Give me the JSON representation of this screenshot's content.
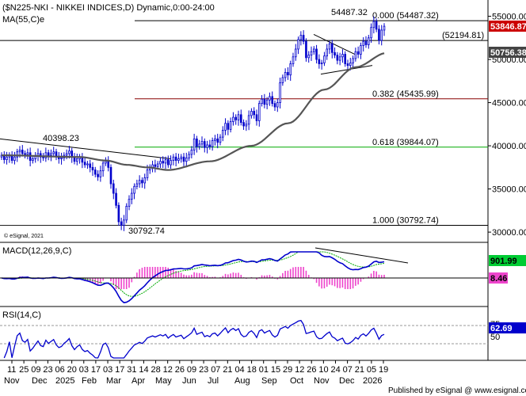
{
  "panel_title": "($N225-NKI - NIKKEI INDICES,D) Dynamic,0:00-24:00",
  "ma_label": "MA(55,C)e",
  "watermark": "© eSignal, 2021",
  "footer": "Published by eSignal @ www.esignal.com",
  "colors": {
    "candle": "#0000cc",
    "ma": "#555555",
    "fib_high": "#000000",
    "fib_mid": "#880000",
    "fib_green": "#00aa00",
    "macd_hist": "#ee44cc",
    "macd_signal": "#00aa00",
    "price_badge": "#cc0000"
  },
  "price_panel": {
    "ylim": [
      29000,
      56700
    ],
    "ticks": [
      "55000.00",
      "50000.00",
      "45000.00",
      "40000.00",
      "35000.00",
      "30000.00"
    ],
    "tick_values": [
      55000,
      50000,
      45000,
      40000,
      35000,
      30000
    ],
    "last_price": "53846.87",
    "ma_value": "50756.38",
    "peak_label": "54487.32",
    "trough_label": "30792.74",
    "early_high_label": "40398.23",
    "fib_levels": [
      {
        "ratio": "0.000",
        "value": 54487.32,
        "label": "0.000 (54487.32)",
        "color": "#000000"
      },
      {
        "ratio": "",
        "value": 52194.81,
        "label": "(52194.81)",
        "color": "#000000"
      },
      {
        "ratio": "0.382",
        "value": 45435.99,
        "label": "0.382 (45435.99)",
        "color": "#880000"
      },
      {
        "ratio": "0.618",
        "value": 39844.07,
        "label": "0.618 (39844.07)",
        "color": "#00aa00"
      },
      {
        "ratio": "1.000",
        "value": 30792.74,
        "label": "1.000 (30792.74)",
        "color": "#000000"
      }
    ]
  },
  "macd_panel": {
    "label": "MACD(12,26,9,C)",
    "value_1": "901.99",
    "value_2": "8.46"
  },
  "rsi_panel": {
    "label": "RSI(14,C)",
    "ticks": [
      "75",
      "50"
    ],
    "value": "62.69"
  },
  "x_axis": {
    "day_labels": [
      "11",
      "25",
      "09",
      "23",
      "06",
      "20",
      "03",
      "17",
      "03",
      "17",
      "31",
      "14",
      "28",
      "12",
      "26",
      "09",
      "23",
      "07",
      "21",
      "04",
      "18",
      "01",
      "15",
      "29",
      "12",
      "26",
      "10",
      "24",
      "07",
      "21",
      "05",
      "19"
    ],
    "month_labels": [
      "Nov",
      "Dec",
      "2025",
      "Feb",
      "Mar",
      "Apr",
      "May",
      "Jun",
      "Jul",
      "Aug",
      "Sep",
      "Oct",
      "Nov",
      "Dec",
      "2026"
    ]
  },
  "chart_data": {
    "type": "candlestick",
    "title": "($N225-NKI - NIKKEI INDICES,D) Dynamic,0:00-24:00",
    "ylim": [
      29000,
      56700
    ],
    "close_series_approx": [
      38900,
      38400,
      38700,
      38900,
      38300,
      38700,
      39300,
      39500,
      39100,
      39000,
      39200,
      38300,
      38500,
      38800,
      39100,
      38700,
      38600,
      39200,
      38900,
      39100,
      39300,
      38800,
      38500,
      38600,
      38900,
      39100,
      39400,
      38700,
      38200,
      38500,
      38700,
      38100,
      37800,
      37900,
      37500,
      37200,
      36700,
      36400,
      37100,
      38000,
      38200,
      37500,
      35600,
      34500,
      33100,
      31200,
      30800,
      31400,
      33000,
      33800,
      34500,
      35300,
      35600,
      36000,
      35700,
      36300,
      37200,
      37500,
      37800,
      37600,
      37900,
      38200,
      38000,
      38400,
      37800,
      38300,
      38700,
      38300,
      38500,
      38700,
      38200,
      38600,
      39000,
      39500,
      40800,
      39900,
      40200,
      40500,
      39800,
      40100,
      39900,
      40600,
      40800,
      40400,
      41000,
      41800,
      42600,
      41900,
      42800,
      43300,
      43000,
      43600,
      42700,
      42300,
      42500,
      43500,
      44000,
      43600,
      42900,
      44900,
      45400,
      44800,
      45300,
      45700,
      44900,
      44500,
      45000,
      47300,
      47900,
      48500,
      48200,
      49500,
      50300,
      51200,
      52300,
      52800,
      52100,
      50200,
      50500,
      50900,
      51200,
      50000,
      49500,
      49600,
      50400,
      51200,
      51800,
      50800,
      50500,
      49900,
      50300,
      50600,
      49500,
      49300,
      49600,
      50100,
      50900,
      50600,
      51600,
      52100,
      51700,
      52500,
      53700,
      54400,
      53500,
      52200,
      53400,
      53846.87
    ],
    "ma55_approx_anchor_points": [
      {
        "x": 0,
        "y": 38900
      },
      {
        "x": 30,
        "y": 38700
      },
      {
        "x": 40,
        "y": 38300
      },
      {
        "x": 48,
        "y": 37800
      },
      {
        "x": 56,
        "y": 37500
      },
      {
        "x": 64,
        "y": 37200
      },
      {
        "x": 80,
        "y": 38200
      },
      {
        "x": 96,
        "y": 40000
      },
      {
        "x": 110,
        "y": 42600
      },
      {
        "x": 124,
        "y": 46500
      },
      {
        "x": 136,
        "y": 49100
      },
      {
        "x": 148,
        "y": 50756.38
      }
    ],
    "annotations": [
      {
        "label": "54487.32",
        "value": 54487.32,
        "type": "peak"
      },
      {
        "label": "40398.23",
        "value": 40398.23,
        "type": "swing high"
      },
      {
        "label": "30792.74",
        "value": 30792.74,
        "type": "low"
      }
    ],
    "macd": {
      "params": "12,26,9,C",
      "macd_value": 901.99,
      "hist_value": 8.46
    },
    "rsi": {
      "params": "14,C",
      "value": 62.69,
      "levels": [
        75,
        50
      ]
    }
  }
}
